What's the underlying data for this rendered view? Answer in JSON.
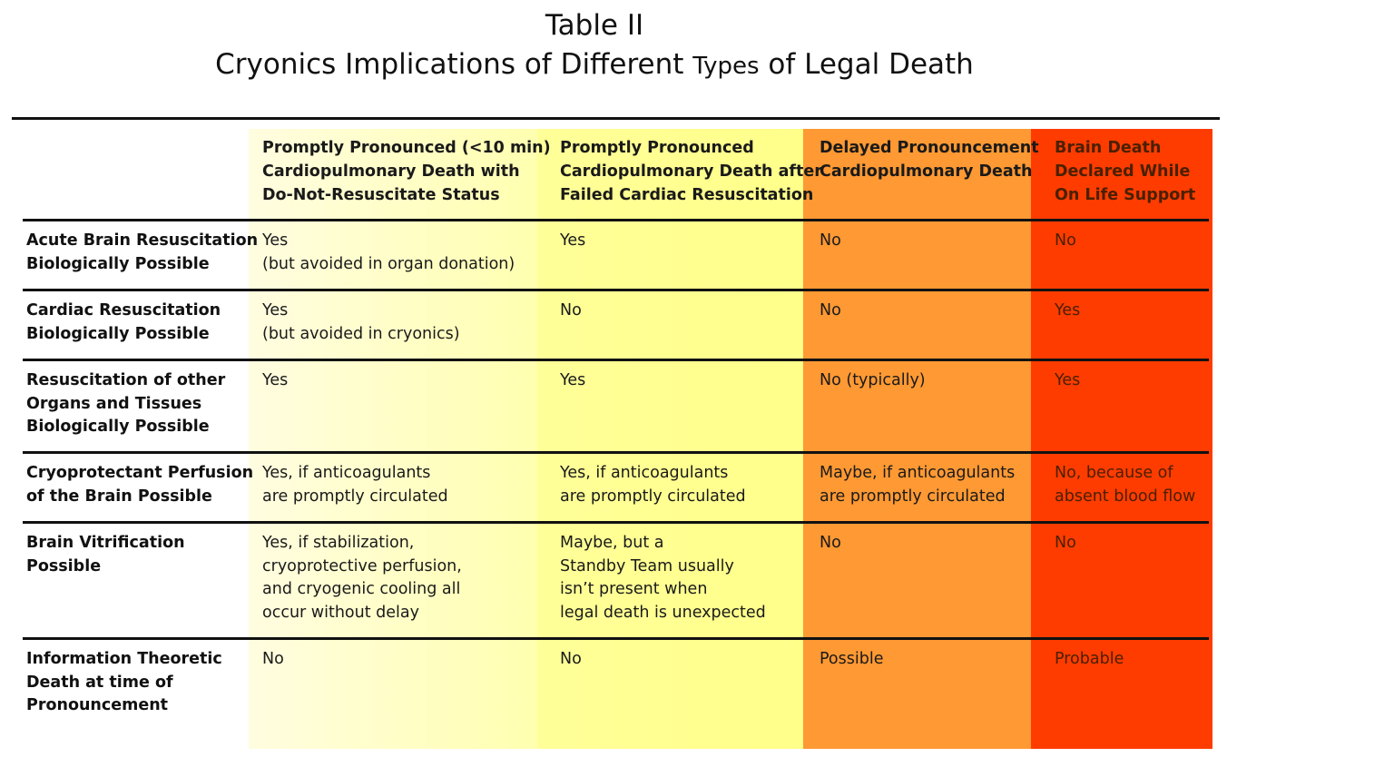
{
  "title": {
    "line1": "Table II",
    "line2_part1": "Cryonics Implications of Different ",
    "line2_part2": "Types",
    "line2_part3": " of Legal Death"
  },
  "colors": {
    "col1": "#ffffb0",
    "col2": "#ffff8a",
    "col3": "#ff9933",
    "col4": "#ff3c00"
  },
  "headers": [
    "Promptly Pronounced  (<10 min)\nCardiopulmonary Death with\nDo-Not-Resuscitate Status",
    "Promptly Pronounced\nCardiopulmonary Death after\nFailed Cardiac Resuscitation",
    "Delayed Pronouncement\nCardiopulmonary Death",
    "Brain Death\nDeclared While\nOn Life Support"
  ],
  "rows": [
    {
      "label": "Acute Brain Resuscitation\nBiologically Possible",
      "cells": [
        "Yes\n(but avoided in organ donation)",
        "Yes",
        "No",
        "No"
      ]
    },
    {
      "label": "Cardiac Resuscitation\nBiologically Possible",
      "cells": [
        "Yes\n(but avoided in cryonics)",
        "No",
        "No",
        "Yes"
      ]
    },
    {
      "label": "Resuscitation of other\nOrgans and Tissues\nBiologically Possible",
      "cells": [
        "Yes",
        "Yes",
        "No (typically)",
        "Yes"
      ]
    },
    {
      "label": "Cryoprotectant Perfusion\nof the Brain Possible",
      "cells": [
        "Yes, if anticoagulants\nare promptly circulated",
        "Yes, if anticoagulants\nare promptly circulated",
        "Maybe, if anticoagulants\nare promptly circulated",
        "No, because of\nabsent blood flow"
      ]
    },
    {
      "label": "Brain Vitrification\nPossible",
      "cells": [
        "Yes, if stabilization,\ncryoprotective perfusion,\nand cryogenic cooling all\noccur without delay",
        "Maybe, but a\nStandby Team usually\nisn’t present when\nlegal death is unexpected",
        "No",
        "No"
      ]
    },
    {
      "label": "Information Theoretic\nDeath at time of\nPronouncement",
      "cells": [
        "No",
        "No",
        "Possible",
        "Probable"
      ]
    }
  ]
}
